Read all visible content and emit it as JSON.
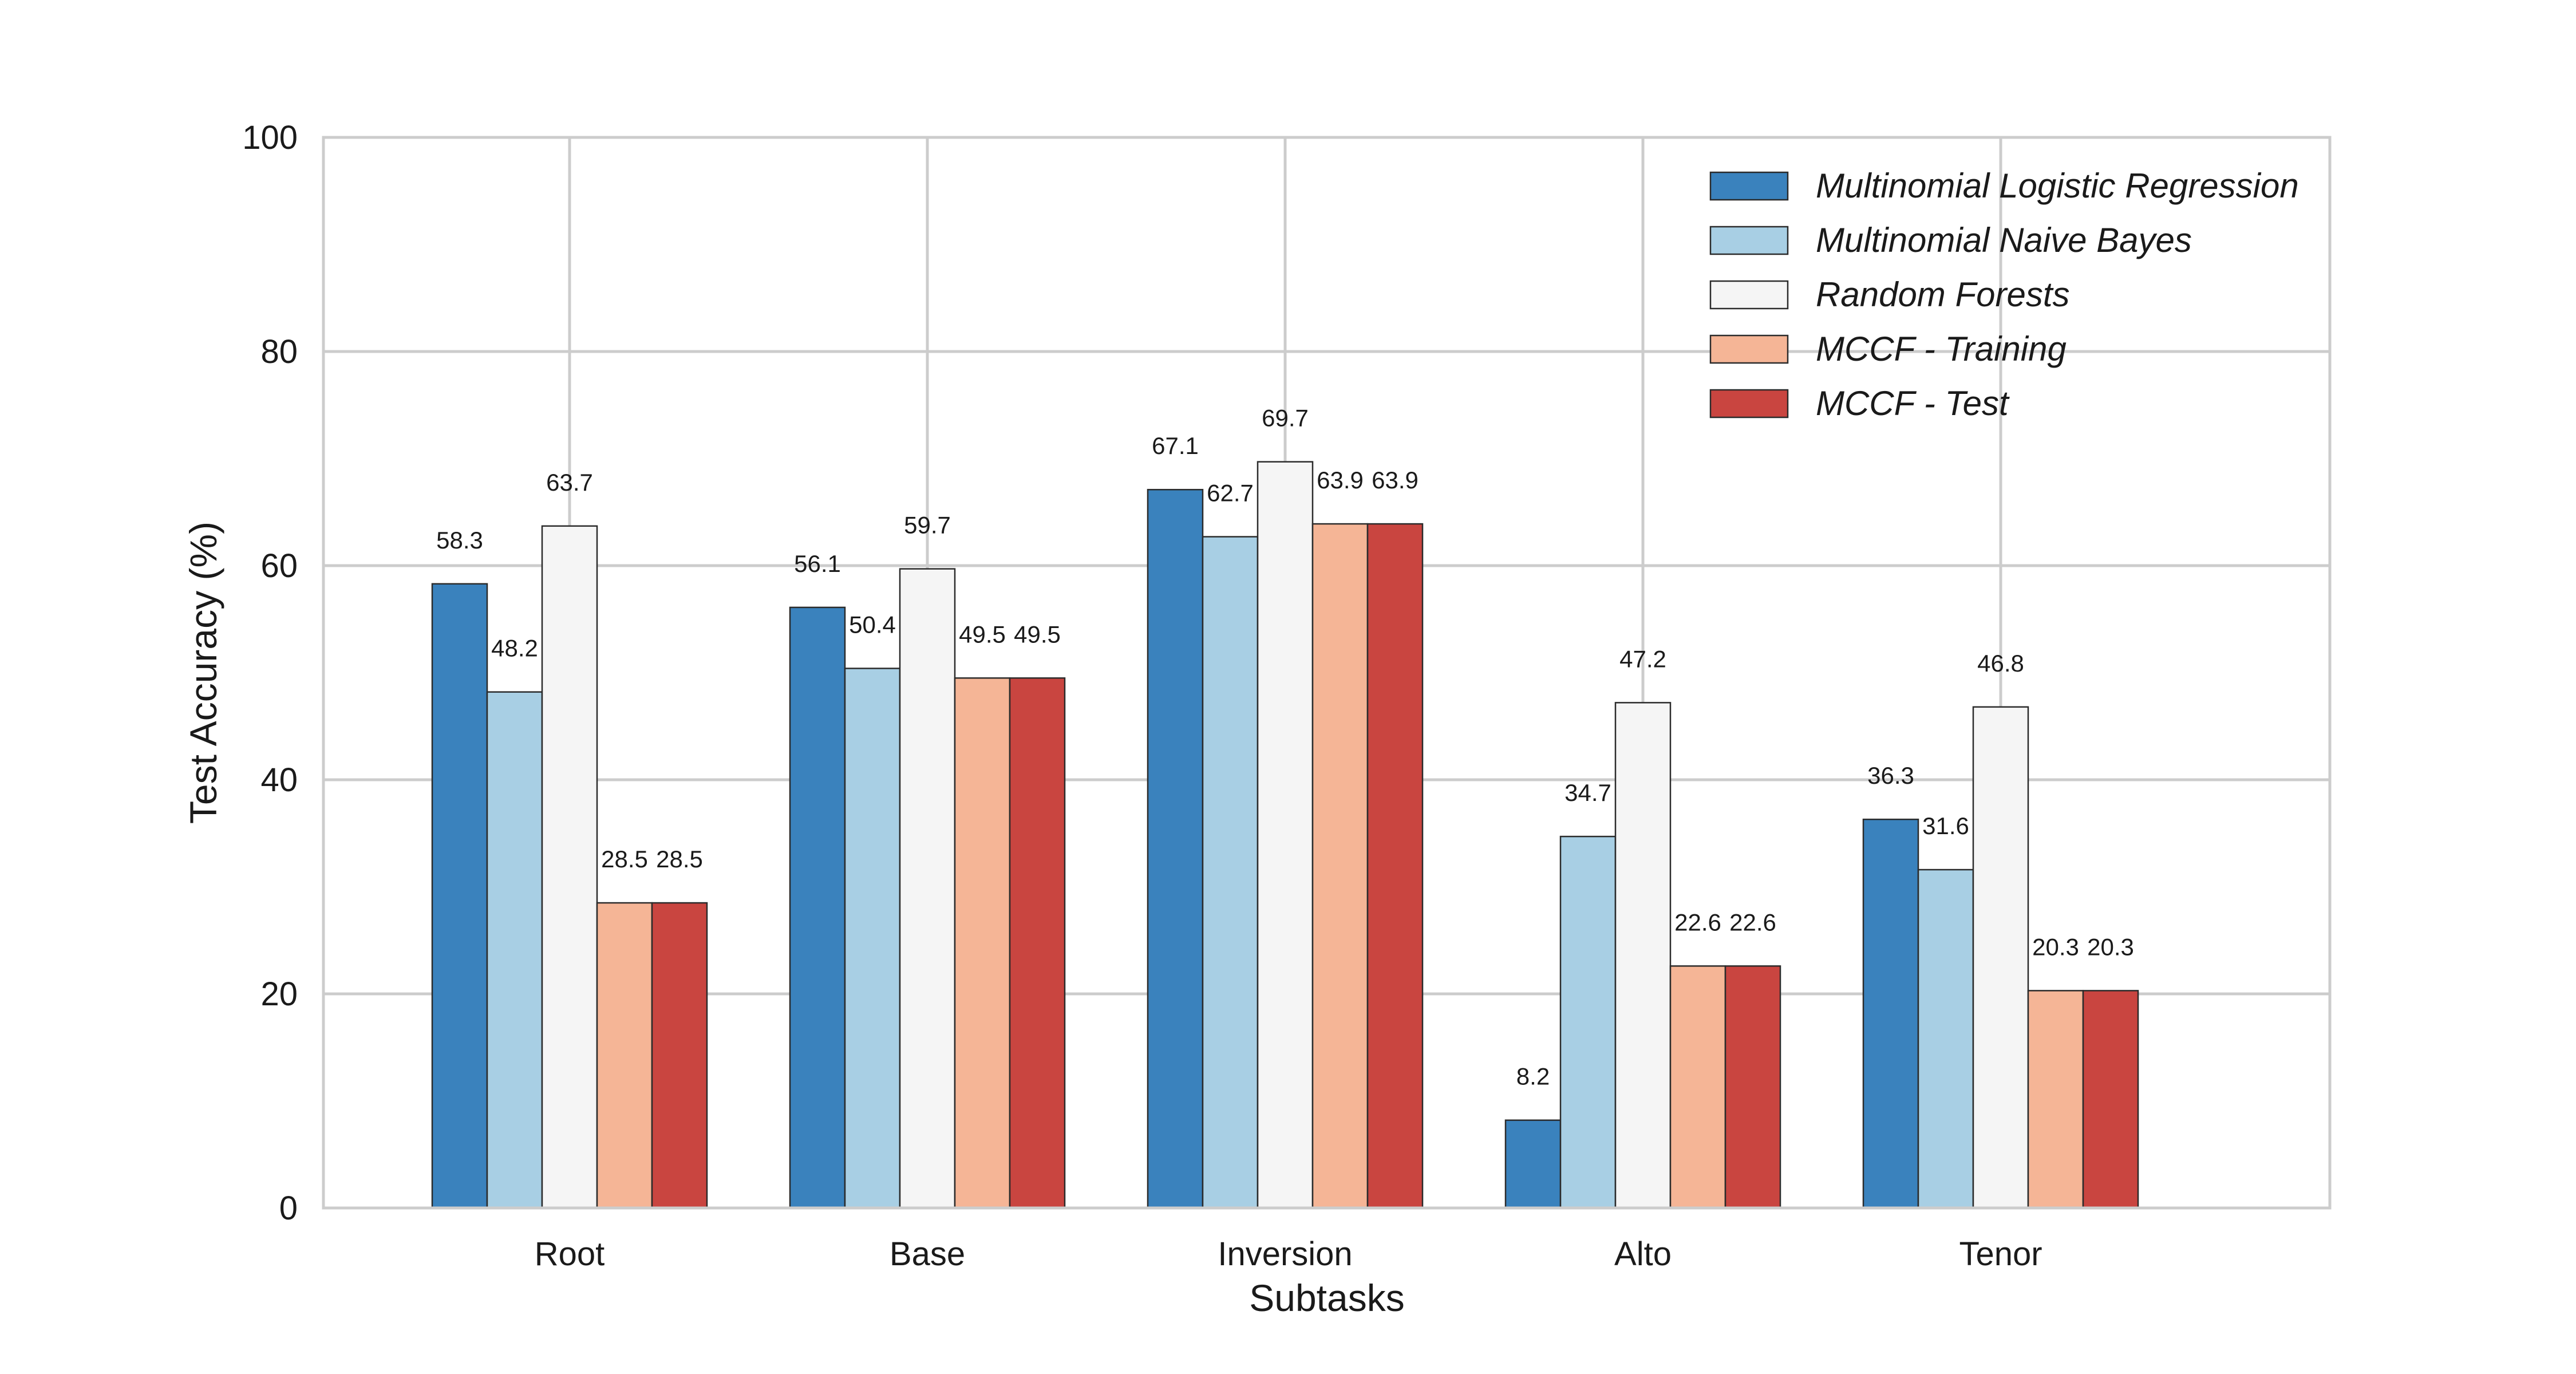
{
  "chart_data": {
    "type": "bar",
    "title": "",
    "xlabel": "Subtasks",
    "ylabel": "Test Accuracy (%)",
    "ylim": [
      0,
      100
    ],
    "yticks": [
      0,
      20,
      40,
      60,
      80,
      100
    ],
    "grid": true,
    "legend_position": "top-right",
    "categories": [
      "Root",
      "Base",
      "Inversion",
      "Alto",
      "Tenor"
    ],
    "series": [
      {
        "name": "Multinomial Logistic Regression",
        "color": "#3a82bd",
        "values": [
          58.3,
          56.1,
          67.1,
          8.2,
          36.3
        ]
      },
      {
        "name": "Multinomial Naive Bayes",
        "color": "#a8cfe4",
        "values": [
          48.2,
          50.4,
          62.7,
          34.7,
          31.6
        ]
      },
      {
        "name": "Random Forests",
        "color": "#f5f5f5",
        "values": [
          63.7,
          59.7,
          69.7,
          47.2,
          46.8
        ]
      },
      {
        "name": "MCCF - Training",
        "color": "#f5b596",
        "values": [
          28.5,
          49.5,
          63.9,
          22.6,
          20.3
        ]
      },
      {
        "name": "MCCF - Test",
        "color": "#c94540",
        "values": [
          28.5,
          49.5,
          63.9,
          22.6,
          20.3
        ]
      }
    ]
  }
}
